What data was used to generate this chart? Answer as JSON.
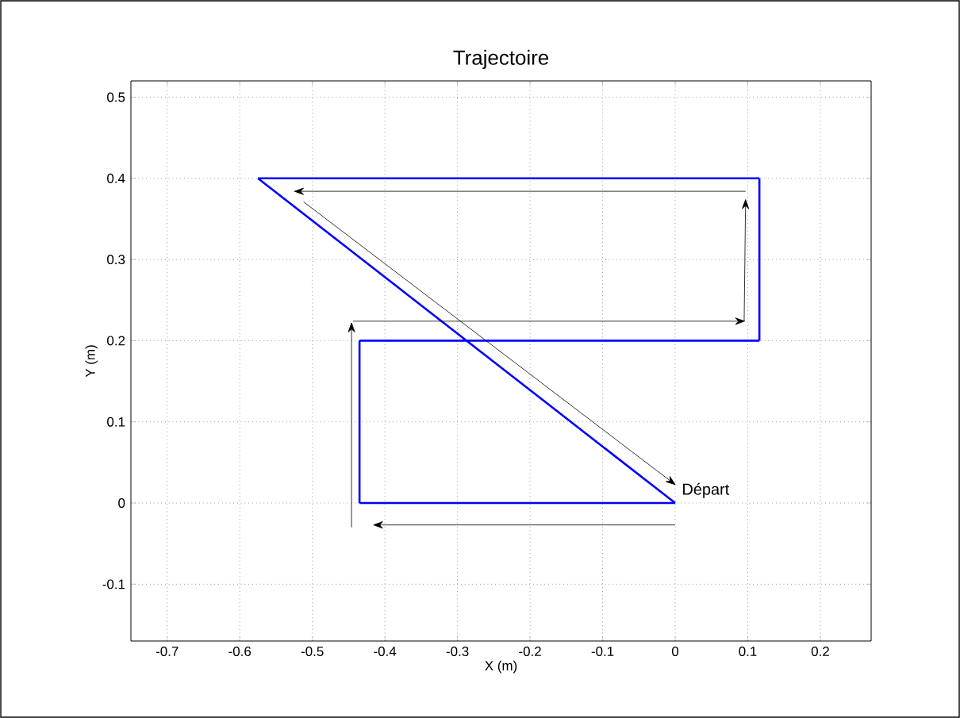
{
  "chart_data": {
    "type": "line",
    "title": "Trajectoire",
    "xlabel": "X (m)",
    "ylabel": "Y (m)",
    "series": [
      {
        "color": "#0000ff",
        "x": [
          0,
          -0.435
        ],
        "values": [
          0,
          0
        ]
      },
      {
        "color": "#0000ff",
        "x": [
          -0.435,
          -0.435
        ],
        "values": [
          0,
          0.2
        ]
      },
      {
        "color": "#0000ff",
        "x": [
          -0.435,
          0.116
        ],
        "values": [
          0.2,
          0.2
        ]
      },
      {
        "color": "#0000ff",
        "x": [
          0.116,
          0.116
        ],
        "values": [
          0.2,
          0.4
        ]
      },
      {
        "color": "#0000ff",
        "x": [
          0.116,
          -0.575
        ],
        "values": [
          0.4,
          0.4
        ]
      },
      {
        "color": "#0000ff",
        "x": [
          -0.575,
          0
        ],
        "values": [
          0.4,
          0
        ]
      }
    ],
    "xlim": [
      -0.75,
      0.27
    ],
    "ylim": [
      -0.17,
      0.52
    ],
    "xticks": [
      -0.7,
      -0.6,
      -0.5,
      -0.4,
      -0.3,
      -0.2,
      -0.1,
      0,
      0.1,
      0.2
    ],
    "yticks": [
      -0.1,
      0,
      0.1,
      0.2,
      0.3,
      0.4,
      0.5
    ],
    "grid": true,
    "annotations": [
      {
        "text": "Départ",
        "x": 0,
        "y": 0
      }
    ]
  }
}
